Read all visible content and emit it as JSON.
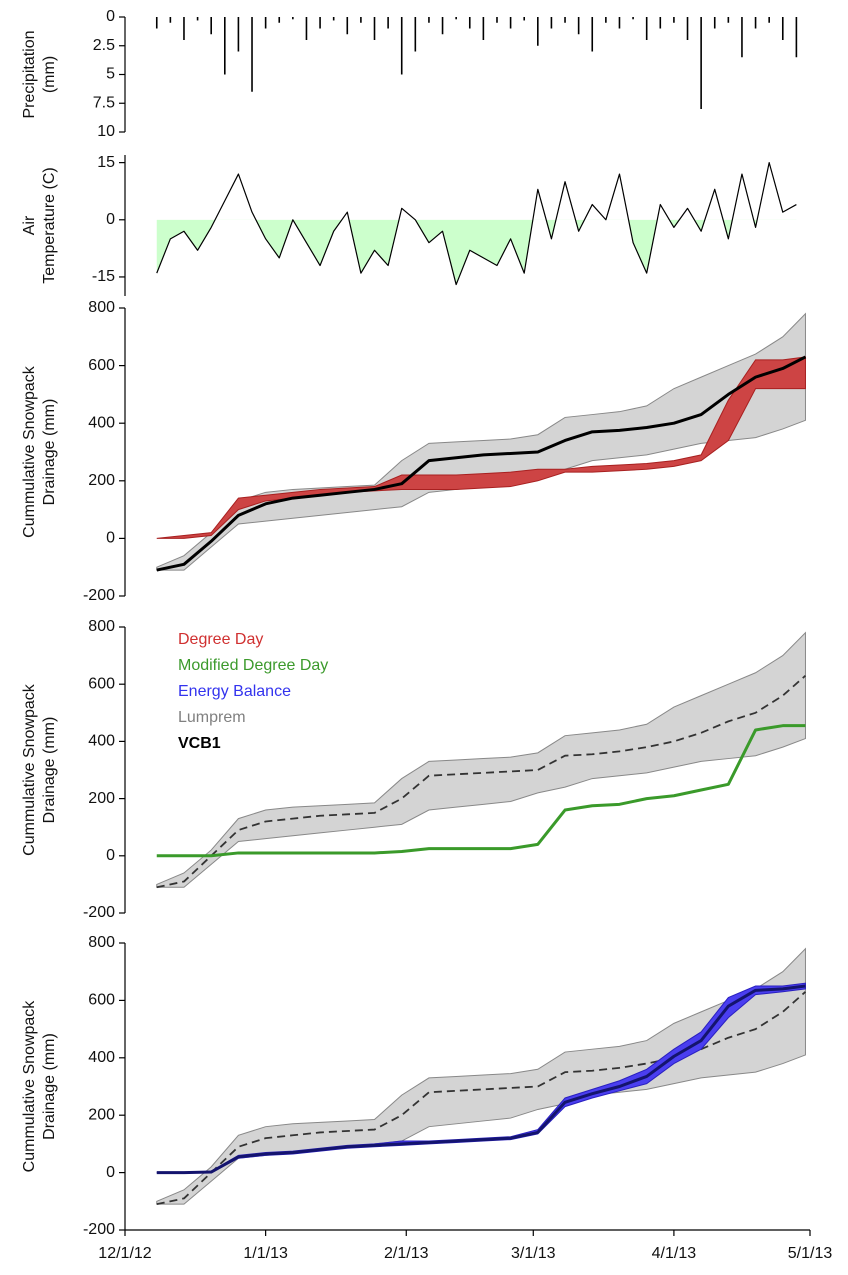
{
  "chart_data": [
    {
      "type": "bar",
      "ylabel": [
        "Precipitation",
        "(mm)"
      ],
      "color": "#000000",
      "xlim": [
        "12/1/12",
        "5/1/13"
      ],
      "ylim": [
        10,
        0
      ],
      "yticks": [
        0,
        2.5,
        5,
        7.5,
        10
      ],
      "x": [
        "12/8/12",
        "12/11/12",
        "12/14/12",
        "12/17/12",
        "12/20/12",
        "12/23/12",
        "12/26/12",
        "12/29/12",
        "1/1/13",
        "1/4/13",
        "1/7/13",
        "1/10/13",
        "1/13/13",
        "1/16/13",
        "1/19/13",
        "1/22/13",
        "1/25/13",
        "1/28/13",
        "1/31/13",
        "2/3/13",
        "2/6/13",
        "2/9/13",
        "2/12/13",
        "2/15/13",
        "2/18/13",
        "2/21/13",
        "2/24/13",
        "2/27/13",
        "3/2/13",
        "3/5/13",
        "3/8/13",
        "3/11/13",
        "3/14/13",
        "3/17/13",
        "3/20/13",
        "3/23/13",
        "3/26/13",
        "3/29/13",
        "4/1/13",
        "4/4/13",
        "4/7/13",
        "4/10/13",
        "4/13/13",
        "4/16/13",
        "4/19/13",
        "4/22/13",
        "4/25/13",
        "4/28/13"
      ],
      "values": [
        1,
        0.5,
        2,
        0.3,
        1.5,
        5,
        3,
        6.5,
        1,
        0.5,
        0.2,
        2,
        1,
        0.3,
        1.5,
        0.5,
        2,
        1,
        5,
        3,
        0.5,
        1.5,
        0.2,
        1,
        2,
        0.5,
        1,
        0.3,
        2.5,
        1,
        0.5,
        1.5,
        3,
        0.5,
        1,
        0.2,
        2,
        1,
        0.5,
        2,
        8,
        1,
        0.5,
        3.5,
        1,
        0.5,
        2,
        3.5
      ]
    },
    {
      "type": "line",
      "ylabel": [
        "Air",
        "Temperature (C)"
      ],
      "xlim": [
        "12/1/12",
        "5/1/13"
      ],
      "ylim": [
        -20,
        17
      ],
      "yticks": [
        -15,
        0,
        15
      ],
      "x": [
        "12/8/12",
        "12/11/12",
        "12/14/12",
        "12/17/12",
        "12/20/12",
        "12/23/12",
        "12/26/12",
        "12/29/12",
        "1/1/13",
        "1/4/13",
        "1/7/13",
        "1/10/13",
        "1/13/13",
        "1/16/13",
        "1/19/13",
        "1/22/13",
        "1/25/13",
        "1/28/13",
        "1/31/13",
        "2/3/13",
        "2/6/13",
        "2/9/13",
        "2/12/13",
        "2/15/13",
        "2/18/13",
        "2/21/13",
        "2/24/13",
        "2/27/13",
        "3/2/13",
        "3/5/13",
        "3/8/13",
        "3/11/13",
        "3/14/13",
        "3/17/13",
        "3/20/13",
        "3/23/13",
        "3/26/13",
        "3/29/13",
        "4/1/13",
        "4/4/13",
        "4/7/13",
        "4/10/13",
        "4/13/13",
        "4/16/13",
        "4/19/13",
        "4/22/13",
        "4/25/13",
        "4/28/13"
      ],
      "series": [
        {
          "color": "#000000",
          "width": 1.2,
          "negative_fill": "#ccffcc",
          "values": [
            -14,
            -5,
            -3,
            -8,
            -2,
            5,
            12,
            2,
            -5,
            -10,
            0,
            -6,
            -12,
            -3,
            2,
            -14,
            -8,
            -12,
            3,
            0,
            -6,
            -3,
            -17,
            -8,
            -10,
            -12,
            -5,
            -14,
            8,
            -5,
            10,
            -3,
            4,
            0,
            12,
            -6,
            -14,
            4,
            -2,
            3,
            -3,
            8,
            -5,
            12,
            -2,
            15,
            2,
            4
          ]
        }
      ]
    },
    {
      "type": "line",
      "ylabel": [
        "Cummulative Snowpack",
        "Drainage (mm)"
      ],
      "xlim": [
        "12/1/12",
        "5/1/13"
      ],
      "ylim": [
        -200,
        800
      ],
      "yticks": [
        -200,
        0,
        200,
        400,
        600,
        800
      ],
      "x": [
        "12/8/12",
        "12/14/12",
        "12/20/12",
        "12/26/12",
        "1/1/13",
        "1/7/13",
        "1/13/13",
        "1/19/13",
        "1/25/13",
        "1/31/13",
        "2/6/13",
        "2/12/13",
        "2/18/13",
        "2/24/13",
        "3/2/13",
        "3/8/13",
        "3/14/13",
        "3/20/13",
        "3/26/13",
        "4/1/13",
        "4/7/13",
        "4/13/13",
        "4/19/13",
        "4/25/13",
        "4/30/13"
      ],
      "series": [
        {
          "color": "#d4d4d4",
          "stroke": "#888888",
          "upper": [
            -100,
            -60,
            20,
            130,
            160,
            170,
            175,
            180,
            185,
            270,
            330,
            335,
            340,
            345,
            360,
            420,
            430,
            440,
            460,
            520,
            560,
            600,
            640,
            700,
            780
          ],
          "lower": [
            -110,
            -110,
            -30,
            50,
            60,
            70,
            80,
            90,
            100,
            110,
            160,
            170,
            180,
            190,
            220,
            240,
            270,
            280,
            290,
            310,
            330,
            340,
            350,
            380,
            410
          ]
        },
        {
          "color": "#cd4444",
          "stroke": "#a82020",
          "upper": [
            0,
            10,
            20,
            140,
            150,
            160,
            170,
            175,
            180,
            220,
            220,
            220,
            225,
            230,
            240,
            240,
            250,
            255,
            260,
            270,
            290,
            480,
            620,
            620,
            630
          ],
          "lower": [
            0,
            0,
            10,
            100,
            130,
            140,
            150,
            160,
            165,
            170,
            170,
            170,
            175,
            180,
            200,
            230,
            230,
            235,
            240,
            250,
            270,
            340,
            520,
            520,
            520
          ]
        },
        {
          "color": "#000000",
          "width": 3,
          "values": [
            -110,
            -90,
            -10,
            80,
            120,
            140,
            150,
            160,
            170,
            190,
            270,
            280,
            290,
            295,
            300,
            340,
            370,
            375,
            385,
            400,
            430,
            500,
            560,
            590,
            630
          ]
        }
      ]
    },
    {
      "type": "line",
      "ylabel": [
        "Cummulative Snowpack",
        "Drainage (mm)"
      ],
      "xlim": [
        "12/1/12",
        "5/1/13"
      ],
      "ylim": [
        -200,
        800
      ],
      "yticks": [
        -200,
        0,
        200,
        400,
        600,
        800
      ],
      "legend": [
        {
          "name": "Degree Day",
          "color": "#d03030"
        },
        {
          "name": "Modified Degree Day",
          "color": "#3c9a2c"
        },
        {
          "name": "Energy Balance",
          "color": "#3333ee"
        },
        {
          "name": "Lumprem",
          "color": "#808080"
        },
        {
          "name": "VCB1",
          "color": "#000000",
          "bold": true
        }
      ],
      "x": [
        "12/8/12",
        "12/14/12",
        "12/20/12",
        "12/26/12",
        "1/1/13",
        "1/7/13",
        "1/13/13",
        "1/19/13",
        "1/25/13",
        "1/31/13",
        "2/6/13",
        "2/12/13",
        "2/18/13",
        "2/24/13",
        "3/2/13",
        "3/8/13",
        "3/14/13",
        "3/20/13",
        "3/26/13",
        "4/1/13",
        "4/7/13",
        "4/13/13",
        "4/19/13",
        "4/25/13",
        "4/30/13"
      ],
      "series": [
        {
          "color": "#d4d4d4",
          "stroke": "#888888",
          "upper": [
            -100,
            -60,
            20,
            130,
            160,
            170,
            175,
            180,
            185,
            270,
            330,
            335,
            340,
            345,
            360,
            420,
            430,
            440,
            460,
            520,
            560,
            600,
            640,
            700,
            780
          ],
          "lower": [
            -110,
            -110,
            -30,
            50,
            60,
            70,
            80,
            90,
            100,
            110,
            160,
            170,
            180,
            190,
            220,
            240,
            270,
            280,
            290,
            310,
            330,
            340,
            350,
            380,
            410
          ]
        },
        {
          "color": "#333333",
          "width": 1.8,
          "dashed": true,
          "values": [
            -110,
            -90,
            0,
            90,
            120,
            130,
            140,
            145,
            150,
            200,
            280,
            285,
            290,
            295,
            300,
            350,
            355,
            365,
            380,
            400,
            430,
            470,
            500,
            560,
            630
          ]
        },
        {
          "color": "#3a9a2a",
          "width": 3,
          "values": [
            0,
            0,
            0,
            10,
            10,
            10,
            10,
            10,
            10,
            15,
            25,
            25,
            25,
            25,
            40,
            160,
            175,
            180,
            200,
            210,
            230,
            250,
            440,
            455,
            455
          ]
        }
      ]
    },
    {
      "type": "line",
      "ylabel": [
        "Cummulative Snowpack",
        "Drainage (mm)"
      ],
      "xlim": [
        "12/1/12",
        "5/1/13"
      ],
      "ylim": [
        -200,
        800
      ],
      "yticks": [
        -200,
        0,
        200,
        400,
        600,
        800
      ],
      "xticks": [
        "12/1/12",
        "1/1/13",
        "2/1/13",
        "3/1/13",
        "4/1/13",
        "5/1/13"
      ],
      "x": [
        "12/8/12",
        "12/14/12",
        "12/20/12",
        "12/26/12",
        "1/1/13",
        "1/7/13",
        "1/13/13",
        "1/19/13",
        "1/25/13",
        "1/31/13",
        "2/6/13",
        "2/12/13",
        "2/18/13",
        "2/24/13",
        "3/2/13",
        "3/8/13",
        "3/14/13",
        "3/20/13",
        "3/26/13",
        "4/1/13",
        "4/7/13",
        "4/13/13",
        "4/19/13",
        "4/25/13",
        "4/30/13"
      ],
      "series": [
        {
          "color": "#d4d4d4",
          "stroke": "#888888",
          "upper": [
            -100,
            -60,
            20,
            130,
            160,
            170,
            175,
            180,
            185,
            270,
            330,
            335,
            340,
            345,
            360,
            420,
            430,
            440,
            460,
            520,
            560,
            600,
            640,
            700,
            780
          ],
          "lower": [
            -110,
            -110,
            -30,
            50,
            60,
            70,
            80,
            90,
            100,
            110,
            160,
            170,
            180,
            190,
            220,
            240,
            270,
            280,
            290,
            310,
            330,
            340,
            350,
            380,
            410
          ]
        },
        {
          "color": "#333333",
          "width": 1.8,
          "dashed": true,
          "values": [
            -110,
            -90,
            0,
            90,
            120,
            130,
            140,
            145,
            150,
            200,
            280,
            285,
            290,
            295,
            300,
            350,
            355,
            365,
            380,
            400,
            430,
            470,
            500,
            560,
            630
          ]
        },
        {
          "color": "#4a3ef0",
          "stroke": "#2a20c0",
          "upper": [
            0,
            0,
            5,
            60,
            70,
            75,
            85,
            95,
            100,
            110,
            110,
            115,
            120,
            125,
            150,
            260,
            290,
            320,
            360,
            430,
            490,
            610,
            650,
            650,
            660
          ],
          "lower": [
            0,
            0,
            0,
            50,
            60,
            65,
            75,
            85,
            90,
            95,
            100,
            105,
            110,
            115,
            135,
            230,
            260,
            285,
            310,
            380,
            430,
            540,
            620,
            630,
            640
          ]
        },
        {
          "color": "#14146e",
          "width": 3,
          "values": [
            0,
            0,
            2,
            55,
            65,
            70,
            80,
            90,
            95,
            100,
            105,
            110,
            115,
            120,
            140,
            245,
            275,
            300,
            335,
            405,
            460,
            580,
            635,
            640,
            650
          ]
        }
      ]
    }
  ]
}
